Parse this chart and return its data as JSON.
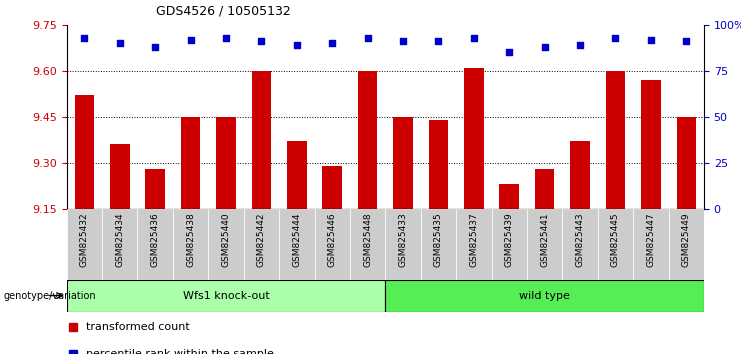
{
  "title": "GDS4526 / 10505132",
  "samples": [
    "GSM825432",
    "GSM825434",
    "GSM825436",
    "GSM825438",
    "GSM825440",
    "GSM825442",
    "GSM825444",
    "GSM825446",
    "GSM825448",
    "GSM825433",
    "GSM825435",
    "GSM825437",
    "GSM825439",
    "GSM825441",
    "GSM825443",
    "GSM825445",
    "GSM825447",
    "GSM825449"
  ],
  "bar_values": [
    9.52,
    9.36,
    9.28,
    9.45,
    9.45,
    9.6,
    9.37,
    9.29,
    9.6,
    9.45,
    9.44,
    9.61,
    9.23,
    9.28,
    9.37,
    9.6,
    9.57,
    9.45
  ],
  "dot_values": [
    93,
    90,
    88,
    92,
    93,
    91,
    89,
    90,
    93,
    91,
    91,
    93,
    85,
    88,
    89,
    93,
    92,
    91
  ],
  "ylim_left": [
    9.15,
    9.75
  ],
  "ylim_right": [
    0,
    100
  ],
  "yticks_left": [
    9.15,
    9.3,
    9.45,
    9.6,
    9.75
  ],
  "ytick_labels_right": [
    "0",
    "25",
    "50",
    "75",
    "100%"
  ],
  "yticks_right": [
    0,
    25,
    50,
    75,
    100
  ],
  "bar_color": "#CC0000",
  "dot_color": "#0000CC",
  "group1_label": "Wfs1 knock-out",
  "group2_label": "wild type",
  "group1_color": "#AAFFAA",
  "group2_color": "#55EE55",
  "group_label": "genotype/variation",
  "legend_bar": "transformed count",
  "legend_dot": "percentile rank within the sample",
  "tick_bg": "#CCCCCC",
  "n_group1": 9,
  "n_group2": 9
}
